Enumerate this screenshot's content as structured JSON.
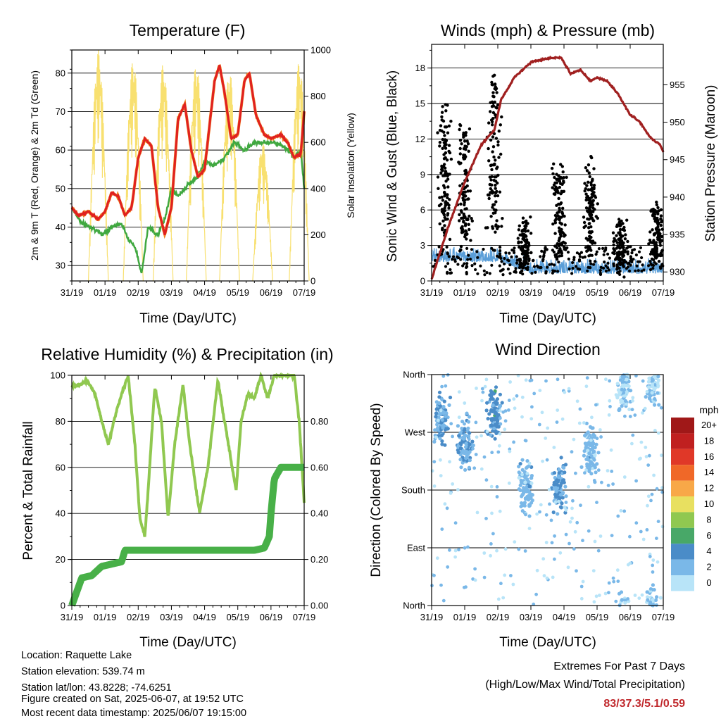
{
  "panels": {
    "temperature": {
      "title": "Temperature (F)",
      "xlabel": "Time (Day/UTC)",
      "ylabel_left": "2m & 9m T (Red, Orange) & 2m Td (Green)",
      "ylabel_right": "Solar Insolation (Yellow)"
    },
    "winds": {
      "title": "Winds (mph) & Pressure (mb)",
      "xlabel": "Time (Day/UTC)",
      "ylabel_left": "Sonic Wind & Gust (Blue, Black)",
      "ylabel_right": "Station Pressure (Maroon)"
    },
    "humidity": {
      "title": "Relative Humidity (%) & Precipitation (in)",
      "xlabel": "Time (Day/UTC)",
      "ylabel_left": "Percent & Total Rainfall"
    },
    "direction": {
      "title": "Wind Direction",
      "xlabel": "Time (Day/UTC)",
      "ylabel_left": "Direction (Colored By Speed)",
      "legend_title": "mph"
    }
  },
  "info": {
    "location": "Location: Raquette Lake",
    "elevation": "Station elevation: 539.74 m",
    "latlon": "Station lat/lon: 43.8228; -74.6251",
    "created": "Figure created on Sat, 2025-06-07, at 19:52 UTC",
    "recent": "Most recent data timestamp: 2025/06/07 19:15:00"
  },
  "extremes": {
    "title": "Extremes For Past 7 Days",
    "subtitle": "(High/Low/Max Wind/Total Precipitation)",
    "values": "83/37.3/5.1/0.59"
  },
  "chart_data": [
    {
      "id": "temperature",
      "type": "line",
      "x_categories": [
        "31/19",
        "01/19",
        "02/19",
        "03/19",
        "04/19",
        "05/19",
        "06/19",
        "07/19"
      ],
      "y_left": {
        "ylim": [
          26,
          86
        ],
        "ticks": [
          "30",
          "40",
          "50",
          "60",
          "70",
          "80"
        ]
      },
      "y_right": {
        "ylim": [
          0,
          1000
        ],
        "ticks": [
          "0",
          "200",
          "400",
          "600",
          "800",
          "1000"
        ]
      },
      "grid": true,
      "colors": {
        "t2m": "#e02020",
        "t9m": "#f08020",
        "td2m": "#40a840",
        "solar": "#f8e070"
      },
      "series": [
        {
          "key": "t2m",
          "values": [
            [
              0,
              45
            ],
            [
              0.2,
              43
            ],
            [
              0.5,
              44
            ],
            [
              0.8,
              42
            ],
            [
              1.0,
              44
            ],
            [
              1.2,
              49
            ],
            [
              1.4,
              48
            ],
            [
              1.6,
              43
            ],
            [
              1.8,
              45
            ],
            [
              2.0,
              58
            ],
            [
              2.2,
              63
            ],
            [
              2.4,
              61
            ],
            [
              2.6,
              45
            ],
            [
              2.8,
              38
            ],
            [
              3.0,
              45
            ],
            [
              3.2,
              68
            ],
            [
              3.4,
              72
            ],
            [
              3.6,
              60
            ],
            [
              3.8,
              53
            ],
            [
              4.0,
              55
            ],
            [
              4.3,
              78
            ],
            [
              4.45,
              82
            ],
            [
              4.6,
              75
            ],
            [
              4.8,
              63
            ],
            [
              5.0,
              64
            ],
            [
              5.2,
              78
            ],
            [
              5.35,
              80
            ],
            [
              5.55,
              69
            ],
            [
              5.8,
              64
            ],
            [
              6.0,
              63
            ],
            [
              6.3,
              64
            ],
            [
              6.5,
              62
            ],
            [
              6.7,
              58
            ],
            [
              6.9,
              59
            ],
            [
              7.0,
              70
            ]
          ]
        },
        {
          "key": "td2m",
          "values": [
            [
              0,
              45
            ],
            [
              0.3,
              41
            ],
            [
              0.6,
              40
            ],
            [
              0.9,
              38
            ],
            [
              1.2,
              40
            ],
            [
              1.5,
              41
            ],
            [
              1.7,
              37
            ],
            [
              1.9,
              35
            ],
            [
              2.1,
              28
            ],
            [
              2.3,
              40
            ],
            [
              2.6,
              38
            ],
            [
              2.8,
              42
            ],
            [
              3.0,
              50
            ],
            [
              3.2,
              48
            ],
            [
              3.5,
              51
            ],
            [
              3.8,
              53
            ],
            [
              4.0,
              57
            ],
            [
              4.3,
              56
            ],
            [
              4.6,
              58
            ],
            [
              4.9,
              62
            ],
            [
              5.2,
              60
            ],
            [
              5.5,
              62
            ],
            [
              5.8,
              62
            ],
            [
              6.1,
              62
            ],
            [
              6.4,
              61
            ],
            [
              6.7,
              58
            ],
            [
              6.9,
              60
            ],
            [
              7.0,
              50
            ]
          ]
        },
        {
          "key": "solar_peaks",
          "values": [
            [
              0.8,
              1000
            ],
            [
              1.85,
              960
            ],
            [
              2.75,
              940
            ],
            [
              3.75,
              940
            ],
            [
              4.75,
              910
            ],
            [
              5.75,
              600
            ],
            [
              6.85,
              950
            ]
          ]
        }
      ]
    },
    {
      "id": "winds",
      "type": "line",
      "x_categories": [
        "31/19",
        "01/19",
        "02/19",
        "03/19",
        "04/19",
        "05/19",
        "06/19",
        "07/19"
      ],
      "y_left": {
        "ylim": [
          0,
          20
        ],
        "ticks": [
          "0",
          "3",
          "6",
          "9",
          "12",
          "15",
          "18"
        ]
      },
      "y_right": {
        "ylim": [
          928.8,
          960.4
        ],
        "ticks": [
          "930",
          "935",
          "940",
          "945",
          "950",
          "955"
        ]
      },
      "grid": true,
      "colors": {
        "wind": "#5a9ed8",
        "gust": "#000000",
        "pressure": "#a02020"
      },
      "series": [
        {
          "key": "pressure",
          "values": [
            [
              0,
              929
            ],
            [
              0.5,
              936
            ],
            [
              1.0,
              942
            ],
            [
              1.5,
              947
            ],
            [
              1.9,
              949
            ],
            [
              2.1,
              953
            ],
            [
              2.5,
              956
            ],
            [
              3.0,
              958
            ],
            [
              3.5,
              958.5
            ],
            [
              3.9,
              958.7
            ],
            [
              4.2,
              956.5
            ],
            [
              4.5,
              957
            ],
            [
              4.8,
              955.5
            ],
            [
              5.0,
              956
            ],
            [
              5.3,
              955.5
            ],
            [
              5.6,
              954
            ],
            [
              6.0,
              951
            ],
            [
              6.3,
              950
            ],
            [
              6.6,
              948
            ],
            [
              6.9,
              947
            ],
            [
              7.0,
              946
            ]
          ]
        },
        {
          "key": "gust_centers",
          "values": [
            [
              0.4,
              9
            ],
            [
              1.0,
              8
            ],
            [
              1.9,
              11
            ],
            [
              2.8,
              3
            ],
            [
              3.85,
              6
            ],
            [
              4.8,
              6
            ],
            [
              5.7,
              3
            ],
            [
              6.8,
              4
            ]
          ]
        },
        {
          "key": "wind_mean",
          "values": [
            [
              0,
              2
            ],
            [
              1,
              2
            ],
            [
              2,
              2
            ],
            [
              3,
              1
            ],
            [
              4,
              1
            ],
            [
              5,
              1
            ],
            [
              6,
              1
            ],
            [
              7,
              1
            ]
          ]
        }
      ]
    },
    {
      "id": "humidity",
      "type": "line",
      "x_categories": [
        "31/19",
        "01/19",
        "02/19",
        "03/19",
        "04/19",
        "05/19",
        "06/19",
        "07/19"
      ],
      "y_left": {
        "ylim": [
          0,
          100
        ],
        "ticks": [
          "0",
          "20",
          "40",
          "60",
          "80",
          "100"
        ]
      },
      "y_right": {
        "ylim": [
          0,
          1.0
        ],
        "ticks": [
          "0.00",
          "0.20",
          "0.40",
          "0.60",
          "0.80"
        ]
      },
      "grid": true,
      "colors": {
        "rh": "#90c850",
        "precip": "#48b048"
      },
      "series": [
        {
          "key": "rh",
          "values": [
            [
              0,
              95
            ],
            [
              0.3,
              96
            ],
            [
              0.45,
              98
            ],
            [
              0.7,
              92
            ],
            [
              0.9,
              80
            ],
            [
              1.1,
              70
            ],
            [
              1.3,
              82
            ],
            [
              1.5,
              92
            ],
            [
              1.7,
              100
            ],
            [
              1.9,
              70
            ],
            [
              2.05,
              38
            ],
            [
              2.2,
              30
            ],
            [
              2.3,
              50
            ],
            [
              2.5,
              95
            ],
            [
              2.7,
              80
            ],
            [
              2.9,
              38
            ],
            [
              3.1,
              70
            ],
            [
              3.35,
              96
            ],
            [
              3.55,
              70
            ],
            [
              3.85,
              40
            ],
            [
              4.1,
              60
            ],
            [
              4.4,
              98
            ],
            [
              4.6,
              80
            ],
            [
              4.95,
              50
            ],
            [
              5.1,
              80
            ],
            [
              5.3,
              92
            ],
            [
              5.5,
              90
            ],
            [
              5.7,
              100
            ],
            [
              5.9,
              90
            ],
            [
              6.1,
              100
            ],
            [
              6.5,
              100
            ],
            [
              6.7,
              100
            ],
            [
              6.85,
              80
            ],
            [
              7.0,
              45
            ]
          ]
        },
        {
          "key": "precip",
          "values": [
            [
              0,
              0
            ],
            [
              0.3,
              0.12
            ],
            [
              0.6,
              0.13
            ],
            [
              0.9,
              0.17
            ],
            [
              1.2,
              0.18
            ],
            [
              1.5,
              0.19
            ],
            [
              1.6,
              0.24
            ],
            [
              2.5,
              0.24
            ],
            [
              4.0,
              0.24
            ],
            [
              5.5,
              0.24
            ],
            [
              5.8,
              0.25
            ],
            [
              5.95,
              0.3
            ],
            [
              6.0,
              0.4
            ],
            [
              6.1,
              0.55
            ],
            [
              6.3,
              0.6
            ],
            [
              7.0,
              0.6
            ]
          ]
        }
      ]
    },
    {
      "id": "direction",
      "type": "scatter",
      "x_categories": [
        "31/19",
        "01/19",
        "02/19",
        "03/19",
        "04/19",
        "05/19",
        "06/19",
        "07/19"
      ],
      "y_categories": [
        "North",
        "East",
        "South",
        "West",
        "North"
      ],
      "grid": true,
      "legend": {
        "title": "mph",
        "position": "right",
        "labels": [
          "20+",
          "18",
          "16",
          "14",
          "12",
          "10",
          "8",
          "6",
          "4",
          "2",
          "0"
        ],
        "colors": [
          "#a01818",
          "#c02020",
          "#e03828",
          "#f06828",
          "#f8a848",
          "#e8e060",
          "#90c850",
          "#48a868",
          "#4a8cc8",
          "#7ab8e8",
          "#b8e4f8"
        ]
      },
      "clusters": [
        {
          "x": 0.3,
          "dir": 290,
          "speed": 3
        },
        {
          "x": 1.0,
          "dir": 250,
          "speed": 3
        },
        {
          "x": 1.9,
          "dir": 300,
          "speed": 4
        },
        {
          "x": 2.85,
          "dir": 185,
          "speed": 2
        },
        {
          "x": 3.85,
          "dir": 185,
          "speed": 3
        },
        {
          "x": 4.8,
          "dir": 240,
          "speed": 2
        },
        {
          "x": 5.8,
          "dir": 340,
          "speed": 1
        },
        {
          "x": 6.7,
          "dir": 350,
          "speed": 1
        }
      ]
    }
  ]
}
